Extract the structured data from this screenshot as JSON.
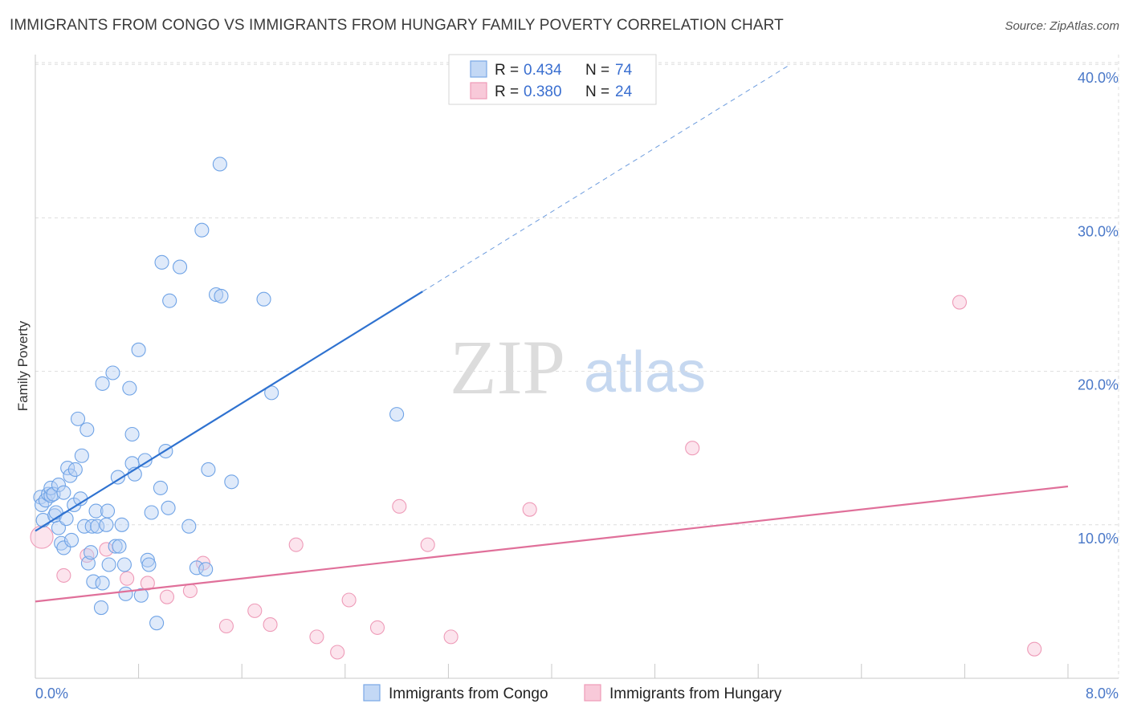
{
  "header": {
    "title": "IMMIGRANTS FROM CONGO VS IMMIGRANTS FROM HUNGARY FAMILY POVERTY CORRELATION CHART",
    "source": "Source: ZipAtlas.com"
  },
  "watermark": {
    "zip": "ZIP",
    "atlas": "atlas"
  },
  "legend": {
    "r_label": "R =",
    "n_label": "N =",
    "congo": {
      "r": "0.434",
      "n": "74"
    },
    "hungary": {
      "r": "0.380",
      "n": "24"
    }
  },
  "chart_data": {
    "type": "scatter",
    "title": "IMMIGRANTS FROM CONGO VS IMMIGRANTS FROM HUNGARY FAMILY POVERTY CORRELATION CHART",
    "xlabel": "",
    "ylabel": "Family Poverty",
    "xlim": [
      0,
      8
    ],
    "ylim": [
      0,
      40
    ],
    "x_tick_labels": [
      "0.0%",
      "8.0%"
    ],
    "y_ticks": [
      10,
      20,
      30,
      40
    ],
    "y_tick_labels": [
      "10.0%",
      "20.0%",
      "30.0%",
      "40.0%"
    ],
    "grid": true,
    "legend_position": "top-center",
    "colors": {
      "congo": "#6fa3e6",
      "hungary": "#f2a0bb",
      "congo_line": "#2f72d0",
      "hungary_line": "#e0709a"
    },
    "series": [
      {
        "name": "Immigrants from Congo",
        "color": "#6fa3e6",
        "trend": {
          "x": [
            0.0,
            3.0
          ],
          "y": [
            9.6,
            25.2
          ],
          "extend_to": [
            5.85,
            40.0
          ]
        },
        "points": [
          [
            0.04,
            11.8
          ],
          [
            0.05,
            11.3
          ],
          [
            0.06,
            10.3
          ],
          [
            0.08,
            11.6
          ],
          [
            0.1,
            12.0
          ],
          [
            0.12,
            11.9
          ],
          [
            0.12,
            12.4
          ],
          [
            0.14,
            12.0
          ],
          [
            0.15,
            10.6
          ],
          [
            0.16,
            10.8
          ],
          [
            0.18,
            9.8
          ],
          [
            0.18,
            12.6
          ],
          [
            0.2,
            8.8
          ],
          [
            0.22,
            12.1
          ],
          [
            0.22,
            8.5
          ],
          [
            0.24,
            10.4
          ],
          [
            0.25,
            13.7
          ],
          [
            0.27,
            13.2
          ],
          [
            0.28,
            9.0
          ],
          [
            0.3,
            11.3
          ],
          [
            0.31,
            13.6
          ],
          [
            0.33,
            16.9
          ],
          [
            0.35,
            11.7
          ],
          [
            0.36,
            14.5
          ],
          [
            0.38,
            9.9
          ],
          [
            0.4,
            16.2
          ],
          [
            0.41,
            7.5
          ],
          [
            0.43,
            8.2
          ],
          [
            0.44,
            9.9
          ],
          [
            0.45,
            6.3
          ],
          [
            0.47,
            10.9
          ],
          [
            0.48,
            9.9
          ],
          [
            0.51,
            4.6
          ],
          [
            0.52,
            6.2
          ],
          [
            0.52,
            19.2
          ],
          [
            0.55,
            10.0
          ],
          [
            0.56,
            10.9
          ],
          [
            0.57,
            7.4
          ],
          [
            0.6,
            19.9
          ],
          [
            0.62,
            8.6
          ],
          [
            0.64,
            13.1
          ],
          [
            0.65,
            8.6
          ],
          [
            0.67,
            10.0
          ],
          [
            0.69,
            7.4
          ],
          [
            0.7,
            5.5
          ],
          [
            0.73,
            18.9
          ],
          [
            0.75,
            15.9
          ],
          [
            0.75,
            14.0
          ],
          [
            0.77,
            13.3
          ],
          [
            0.8,
            21.4
          ],
          [
            0.82,
            5.4
          ],
          [
            0.85,
            14.2
          ],
          [
            0.87,
            7.7
          ],
          [
            0.88,
            7.4
          ],
          [
            0.9,
            10.8
          ],
          [
            0.94,
            3.6
          ],
          [
            0.97,
            12.4
          ],
          [
            0.98,
            27.1
          ],
          [
            1.01,
            14.8
          ],
          [
            1.03,
            11.1
          ],
          [
            1.04,
            24.6
          ],
          [
            1.12,
            26.8
          ],
          [
            1.19,
            9.9
          ],
          [
            1.25,
            7.2
          ],
          [
            1.29,
            29.2
          ],
          [
            1.32,
            7.1
          ],
          [
            1.34,
            13.6
          ],
          [
            1.4,
            25.0
          ],
          [
            1.43,
            33.5
          ],
          [
            1.44,
            24.9
          ],
          [
            1.52,
            12.8
          ],
          [
            1.77,
            24.7
          ],
          [
            1.83,
            18.6
          ],
          [
            2.8,
            17.2
          ]
        ]
      },
      {
        "name": "Immigrants from Hungary",
        "color": "#f2a0bb",
        "trend": {
          "x": [
            0.0,
            8.0
          ],
          "y": [
            5.0,
            12.5
          ]
        },
        "points": [
          [
            0.05,
            9.2
          ],
          [
            0.22,
            6.7
          ],
          [
            0.4,
            8.0
          ],
          [
            0.55,
            8.4
          ],
          [
            0.71,
            6.5
          ],
          [
            0.87,
            6.2
          ],
          [
            1.02,
            5.3
          ],
          [
            1.2,
            5.7
          ],
          [
            1.3,
            7.5
          ],
          [
            1.48,
            3.4
          ],
          [
            1.7,
            4.4
          ],
          [
            1.82,
            3.5
          ],
          [
            2.02,
            8.7
          ],
          [
            2.18,
            2.7
          ],
          [
            2.34,
            1.7
          ],
          [
            2.43,
            5.1
          ],
          [
            2.65,
            3.3
          ],
          [
            2.82,
            11.2
          ],
          [
            3.04,
            8.7
          ],
          [
            3.22,
            2.7
          ],
          [
            3.83,
            11.0
          ],
          [
            5.09,
            15.0
          ],
          [
            7.16,
            24.5
          ],
          [
            7.74,
            1.9
          ]
        ]
      }
    ]
  },
  "bottom_legend": {
    "congo_label": "Immigrants from Congo",
    "hungary_label": "Immigrants from Hungary"
  }
}
